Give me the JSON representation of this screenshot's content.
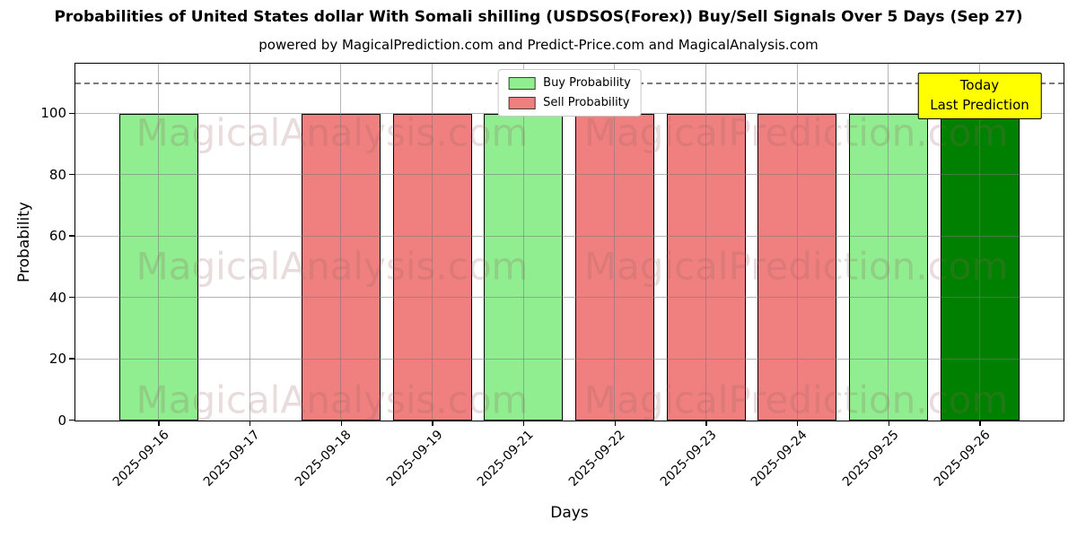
{
  "figure": {
    "title": "Probabilities of United States dollar With Somali shilling (USDSOS(Forex)) Buy/Sell Signals Over 5 Days (Sep 27)",
    "subtitle": "powered by MagicalPrediction.com and Predict-Price.com and MagicalAnalysis.com"
  },
  "chart_data": {
    "type": "bar",
    "title": "Probabilities of United States dollar With Somali shilling (USDSOS(Forex)) Buy/Sell Signals Over 5 Days (Sep 27)",
    "xlabel": "Days",
    "ylabel": "Probability",
    "categories": [
      "2025-09-16",
      "2025-09-17",
      "2025-09-18",
      "2025-09-19",
      "2025-09-21",
      "2025-09-22",
      "2025-09-23",
      "2025-09-24",
      "2025-09-25",
      "2025-09-26"
    ],
    "series": [
      {
        "name": "Buy Probability",
        "color": "#90EE90",
        "values": [
          100,
          0,
          0,
          0,
          100,
          0,
          0,
          0,
          100,
          100
        ]
      },
      {
        "name": "Sell Probability",
        "color": "#F08080",
        "values": [
          0,
          0,
          100,
          100,
          0,
          100,
          100,
          100,
          0,
          0
        ]
      }
    ],
    "bars": [
      {
        "date": "2025-09-16",
        "signal": "buy",
        "value": 100
      },
      {
        "date": "2025-09-17",
        "signal": "none",
        "value": 0
      },
      {
        "date": "2025-09-18",
        "signal": "sell",
        "value": 100
      },
      {
        "date": "2025-09-19",
        "signal": "sell",
        "value": 100
      },
      {
        "date": "2025-09-21",
        "signal": "buy",
        "value": 100
      },
      {
        "date": "2025-09-22",
        "signal": "sell",
        "value": 100
      },
      {
        "date": "2025-09-23",
        "signal": "sell",
        "value": 100
      },
      {
        "date": "2025-09-24",
        "signal": "sell",
        "value": 100
      },
      {
        "date": "2025-09-25",
        "signal": "buy",
        "value": 100
      },
      {
        "date": "2025-09-26",
        "signal": "buy",
        "value": 100,
        "today": true
      }
    ],
    "ylim": [
      0,
      116
    ],
    "yticks": [
      0,
      20,
      40,
      60,
      80,
      100
    ],
    "threshold_line": {
      "y": 110,
      "style": "dashed",
      "color": "#7b7b7b"
    },
    "grid": true,
    "legend_position": "upper center"
  },
  "legend": {
    "items": [
      {
        "label": "Buy Probability",
        "swatch_color": "#90EE90"
      },
      {
        "label": "Sell Probability",
        "swatch_color": "#F08080"
      }
    ]
  },
  "annotation": {
    "lines": [
      "Today",
      "Last Prediction"
    ],
    "bg_color": "#ffff00",
    "border_color": "#000000"
  },
  "watermarks": {
    "left_text": "MagicalAnalysis.com",
    "right_text": "MagicalPrediction.com"
  },
  "colors": {
    "buy": "#90EE90",
    "sell": "#F08080",
    "today": "#008000",
    "bar_edge": "#000000",
    "grid": "#787878",
    "dashed_line": "#7b7b7b",
    "annotation_bg": "#ffff00"
  }
}
